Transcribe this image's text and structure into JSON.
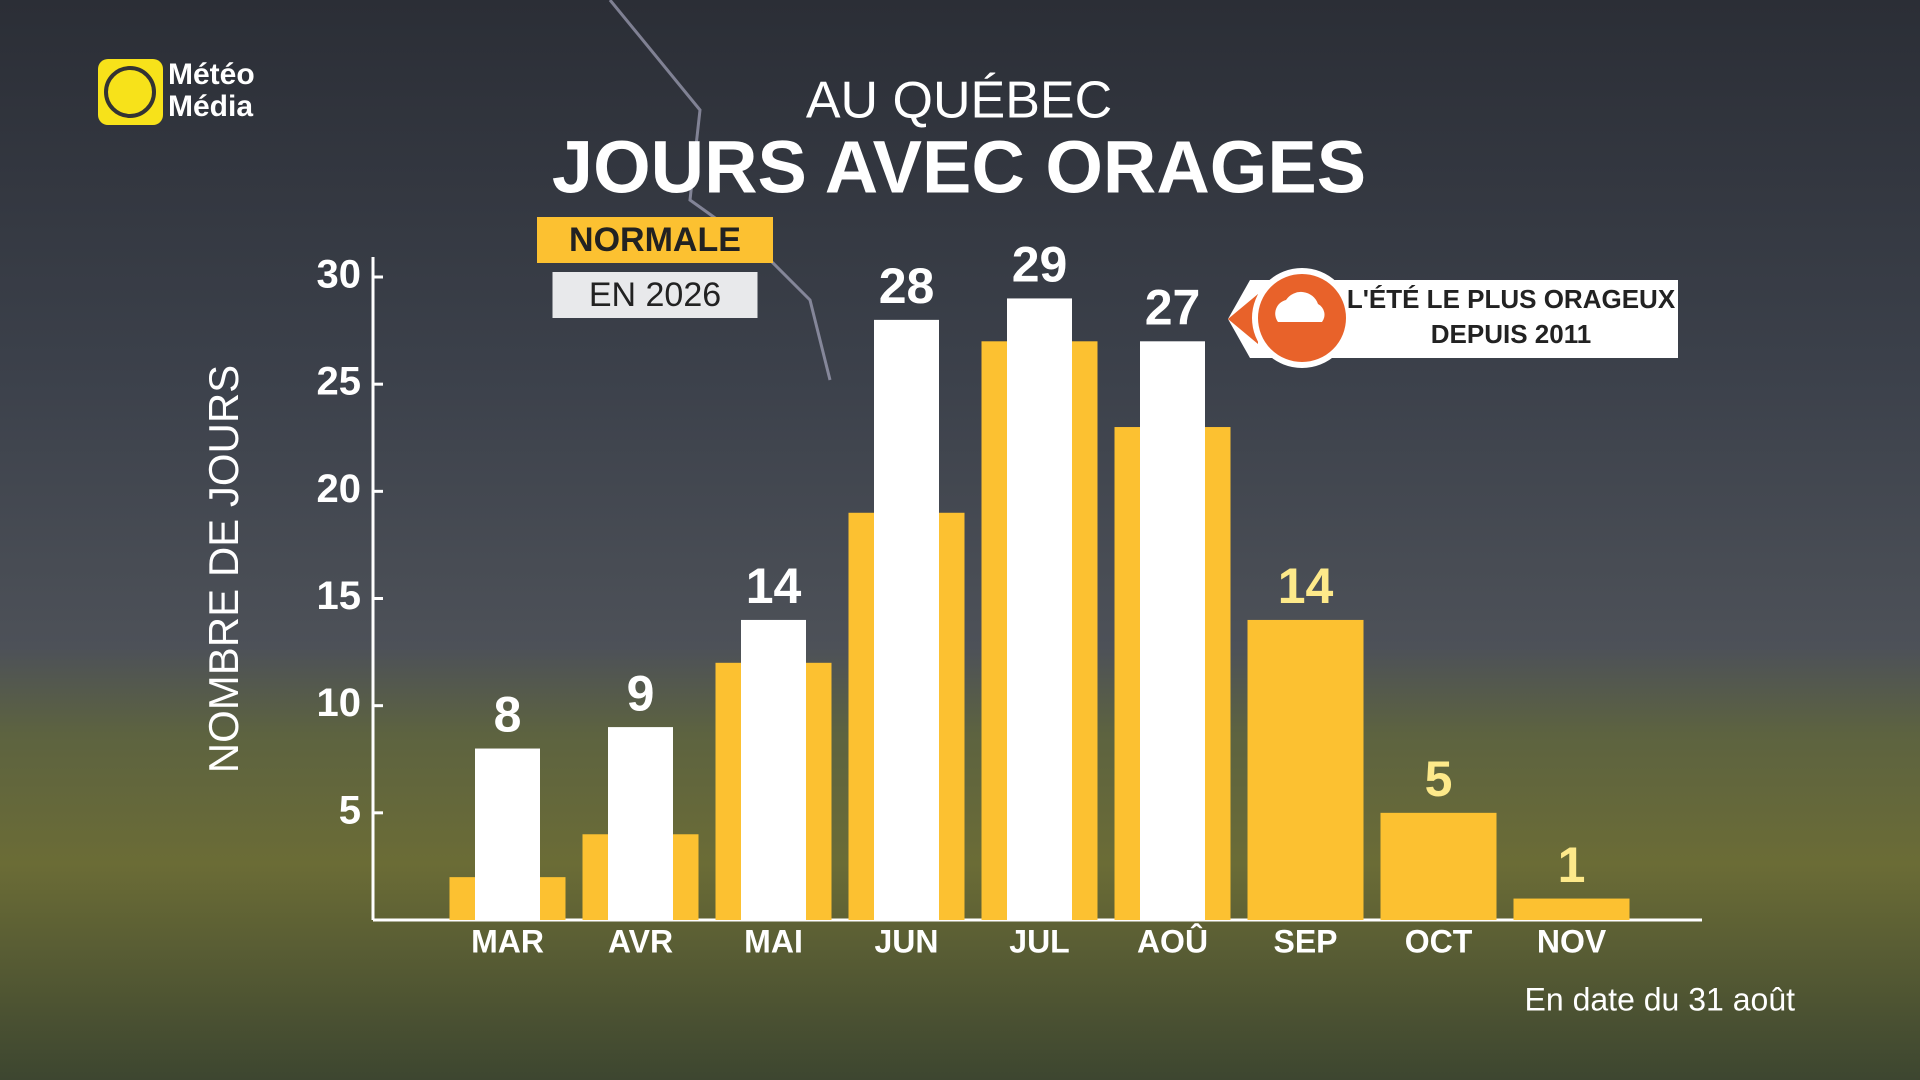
{
  "logo": [
    "Météo",
    "Média"
  ],
  "chart_data": {
    "type": "bar",
    "subtitle": "AU QUÉBEC",
    "title": "JOURS AVEC ORAGES",
    "y_label": "NOMBRE DE JOURS",
    "categories": [
      "MAR",
      "AVR",
      "MAI",
      "JUN",
      "JUL",
      "AOÛ",
      "SEP",
      "OCT",
      "NOV"
    ],
    "series": [
      {
        "name": "NORMALE",
        "color": "#fcc131",
        "values": [
          2,
          4,
          12,
          19,
          27,
          23,
          14,
          5,
          1
        ]
      },
      {
        "name": "EN 2026",
        "color": "#ffffff",
        "values": [
          8,
          9,
          14,
          28,
          29,
          27,
          null,
          null,
          null
        ]
      }
    ],
    "ylim": [
      0,
      30
    ],
    "yticks": [
      5,
      10,
      15,
      20,
      25,
      30
    ],
    "annotation": [
      "L'ÉTÉ LE PLUS ORAGEUX",
      "DEPUIS 2011"
    ],
    "footnote": "En date du 31 août"
  }
}
